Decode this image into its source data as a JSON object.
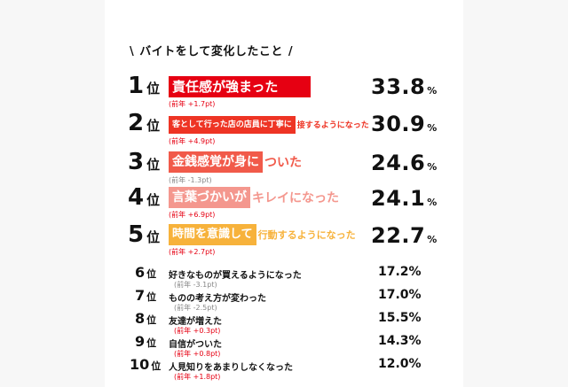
{
  "heading": {
    "slash_left": "\\",
    "text": "バイトをして変化したこと",
    "slash_right": "/"
  },
  "rank_suffix": "位",
  "pct_suffix": "%",
  "colors": {
    "red": "#e60012",
    "red_medium": "#ee3424",
    "coral": "#f15a4a",
    "salmon": "#f4978e",
    "orange": "#f7b23b",
    "plus": "#e60012",
    "minus": "#888888"
  },
  "top": [
    {
      "rank": "1",
      "bar_text": "責任感が強まった",
      "tail_text": "",
      "change": "(前年 +1.7pt)",
      "value": "33.8"
    },
    {
      "rank": "2",
      "bar_text": "客として行った店の店員に丁寧に",
      "tail_text": "接するようになった",
      "change": "(前年 +4.9pt)",
      "value": "30.9"
    },
    {
      "rank": "3",
      "bar_text": "金銭感覚が身に",
      "tail_text": "ついた",
      "change": "(前年 -1.3pt)",
      "value": "24.6"
    },
    {
      "rank": "4",
      "bar_text": "言葉づかいが",
      "tail_text": "キレイになった",
      "change": "(前年 +6.9pt)",
      "value": "24.1"
    },
    {
      "rank": "5",
      "bar_text": "時間を意識して",
      "tail_text": "行動するようになった",
      "change": "(前年 +2.7pt)",
      "value": "22.7"
    }
  ],
  "rest": [
    {
      "rank": "6",
      "label": "好きなものが買えるようになった",
      "change": "(前年 -3.1pt)",
      "value": "17.2%"
    },
    {
      "rank": "7",
      "label": "ものの考え方が変わった",
      "change": "(前年 -2.5pt)",
      "value": "17.0%"
    },
    {
      "rank": "8",
      "label": "友達が増えた",
      "change": "(前年 +0.3pt)",
      "value": "15.5%"
    },
    {
      "rank": "9",
      "label": "自信がついた",
      "change": "(前年 +0.8pt)",
      "value": "14.3%"
    },
    {
      "rank": "10",
      "label": "人見知りをあまりしなくなった",
      "change": "(前年 +1.8pt)",
      "value": "12.0%"
    }
  ]
}
